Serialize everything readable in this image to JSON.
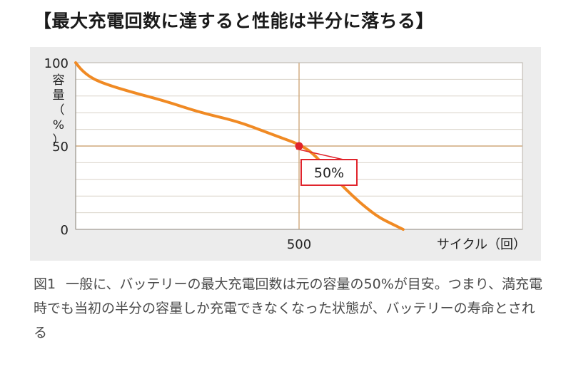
{
  "heading": "【最大充電回数に達すると性能は半分に落ちる】",
  "caption": {
    "label": "図1",
    "text": "一般に、バッテリーの最大充電回数は元の容量の50%が目安。つまり、満充電時でも当初の半分の容量しか充電できなくなった状態が、バッテリーの寿命とされる"
  },
  "chart_data": {
    "type": "line",
    "xlabel": "サイクル（回）",
    "ylabel": "容量（%）",
    "xlim": [
      0,
      1000
    ],
    "ylim": [
      0,
      100
    ],
    "x_ticks": [
      {
        "value": 500,
        "label": "500"
      }
    ],
    "y_ticks": [
      {
        "value": 0,
        "label": "0"
      },
      {
        "value": 50,
        "label": "50"
      },
      {
        "value": 100,
        "label": "100"
      }
    ],
    "grid": true,
    "series": [
      {
        "color": "#f08a24",
        "points": [
          [
            0,
            100
          ],
          [
            15,
            95
          ],
          [
            40,
            90
          ],
          [
            80,
            86
          ],
          [
            130,
            82
          ],
          [
            200,
            77
          ],
          [
            280,
            70
          ],
          [
            360,
            65
          ],
          [
            430,
            58
          ],
          [
            470,
            54
          ],
          [
            500,
            51
          ],
          [
            530,
            46
          ],
          [
            560,
            37
          ],
          [
            590,
            28
          ],
          [
            620,
            20
          ],
          [
            650,
            13
          ],
          [
            680,
            7
          ],
          [
            710,
            3
          ],
          [
            733,
            0
          ]
        ]
      }
    ],
    "annotation": {
      "x": 500,
      "y": 50,
      "label": "50%",
      "color": "#e0242c"
    }
  }
}
